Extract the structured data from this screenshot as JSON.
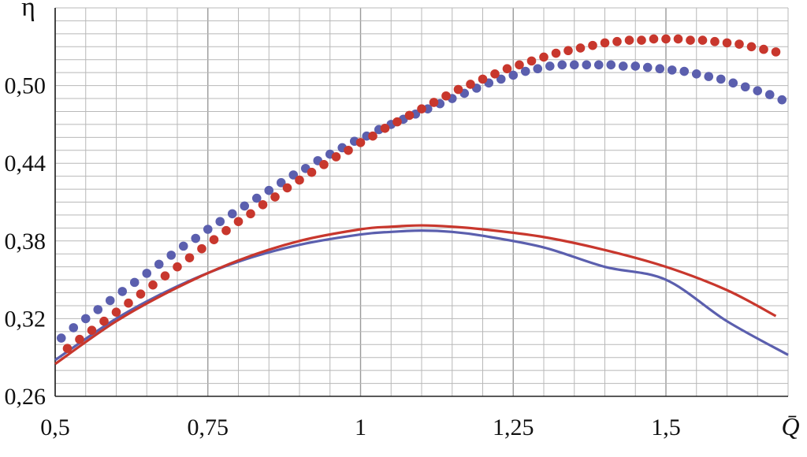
{
  "chart_data": {
    "type": "scatter",
    "title": "",
    "xlabel": "Q̄",
    "ylabel": "η",
    "xlim": [
      0.5,
      1.7
    ],
    "ylim": [
      0.26,
      0.56
    ],
    "x_tick_labels": [
      "0,5",
      "0,75",
      "1",
      "1,25",
      "1,5"
    ],
    "x_ticks": [
      0.5,
      0.75,
      1,
      1.25,
      1.5
    ],
    "y_tick_labels": [
      "0,26",
      "0,32",
      "0,38",
      "0,44",
      "0,50"
    ],
    "y_ticks": [
      0.26,
      0.32,
      0.38,
      0.44,
      0.5
    ],
    "grid": true,
    "legend": "none",
    "series": [
      {
        "kind": "dots",
        "color": "#5b5fae",
        "x": [
          0.51,
          0.53,
          0.55,
          0.57,
          0.59,
          0.61,
          0.63,
          0.65,
          0.67,
          0.69,
          0.71,
          0.73,
          0.75,
          0.77,
          0.79,
          0.81,
          0.83,
          0.85,
          0.87,
          0.89,
          0.91,
          0.93,
          0.95,
          0.97,
          0.99,
          1.01,
          1.03,
          1.05,
          1.07,
          1.09,
          1.11,
          1.13,
          1.15,
          1.17,
          1.19,
          1.21,
          1.23,
          1.25,
          1.27,
          1.29,
          1.31,
          1.33,
          1.35,
          1.37,
          1.39,
          1.41,
          1.43,
          1.45,
          1.47,
          1.49,
          1.51,
          1.53,
          1.55,
          1.57,
          1.59,
          1.61,
          1.63,
          1.65,
          1.67,
          1.69
        ],
        "y": [
          0.305,
          0.313,
          0.32,
          0.327,
          0.334,
          0.341,
          0.348,
          0.355,
          0.362,
          0.369,
          0.376,
          0.382,
          0.389,
          0.395,
          0.401,
          0.407,
          0.413,
          0.419,
          0.425,
          0.431,
          0.436,
          0.442,
          0.447,
          0.452,
          0.457,
          0.461,
          0.466,
          0.47,
          0.474,
          0.478,
          0.482,
          0.486,
          0.49,
          0.494,
          0.498,
          0.502,
          0.505,
          0.508,
          0.511,
          0.513,
          0.515,
          0.516,
          0.516,
          0.516,
          0.516,
          0.516,
          0.515,
          0.515,
          0.514,
          0.513,
          0.512,
          0.511,
          0.509,
          0.507,
          0.505,
          0.502,
          0.499,
          0.496,
          0.493,
          0.489
        ]
      },
      {
        "kind": "dots",
        "color": "#c8372d",
        "x": [
          0.52,
          0.54,
          0.56,
          0.58,
          0.6,
          0.62,
          0.64,
          0.66,
          0.68,
          0.7,
          0.72,
          0.74,
          0.76,
          0.78,
          0.8,
          0.82,
          0.84,
          0.86,
          0.88,
          0.9,
          0.92,
          0.94,
          0.96,
          0.98,
          1.0,
          1.02,
          1.04,
          1.06,
          1.08,
          1.1,
          1.12,
          1.14,
          1.16,
          1.18,
          1.2,
          1.22,
          1.24,
          1.26,
          1.28,
          1.3,
          1.32,
          1.34,
          1.36,
          1.38,
          1.4,
          1.42,
          1.44,
          1.46,
          1.48,
          1.5,
          1.52,
          1.54,
          1.56,
          1.58,
          1.6,
          1.62,
          1.64,
          1.66,
          1.68
        ],
        "y": [
          0.297,
          0.304,
          0.311,
          0.318,
          0.325,
          0.332,
          0.339,
          0.346,
          0.353,
          0.36,
          0.367,
          0.374,
          0.381,
          0.388,
          0.395,
          0.401,
          0.408,
          0.414,
          0.421,
          0.427,
          0.433,
          0.439,
          0.445,
          0.45,
          0.456,
          0.461,
          0.467,
          0.472,
          0.477,
          0.482,
          0.487,
          0.492,
          0.497,
          0.501,
          0.505,
          0.509,
          0.513,
          0.516,
          0.519,
          0.522,
          0.525,
          0.527,
          0.529,
          0.531,
          0.533,
          0.534,
          0.535,
          0.535,
          0.536,
          0.536,
          0.536,
          0.535,
          0.535,
          0.534,
          0.533,
          0.532,
          0.53,
          0.528,
          0.526
        ]
      },
      {
        "kind": "line",
        "color": "#5b5fae",
        "x": [
          0.5,
          0.6,
          0.7,
          0.8,
          0.9,
          1.0,
          1.05,
          1.1,
          1.15,
          1.2,
          1.3,
          1.4,
          1.5,
          1.6,
          1.7
        ],
        "y": [
          0.288,
          0.32,
          0.345,
          0.364,
          0.377,
          0.385,
          0.387,
          0.388,
          0.387,
          0.384,
          0.375,
          0.36,
          0.35,
          0.318,
          0.292
        ]
      },
      {
        "kind": "line",
        "color": "#c8372d",
        "x": [
          0.5,
          0.6,
          0.7,
          0.8,
          0.9,
          1.0,
          1.05,
          1.1,
          1.15,
          1.2,
          1.3,
          1.4,
          1.5,
          1.6,
          1.68
        ],
        "y": [
          0.285,
          0.318,
          0.344,
          0.365,
          0.38,
          0.389,
          0.391,
          0.392,
          0.391,
          0.389,
          0.383,
          0.373,
          0.36,
          0.342,
          0.322
        ]
      }
    ]
  }
}
